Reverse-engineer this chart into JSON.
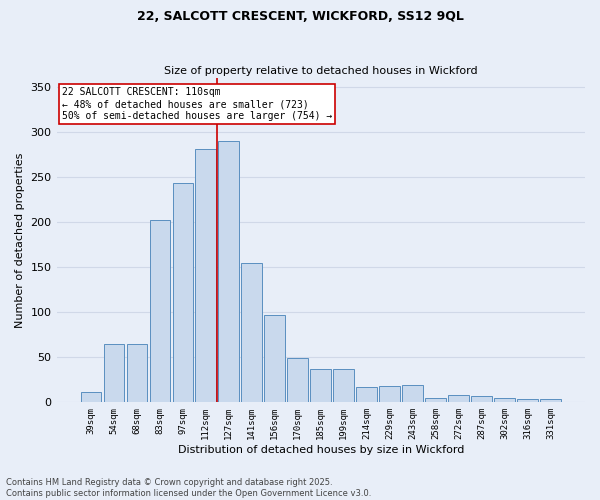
{
  "title1": "22, SALCOTT CRESCENT, WICKFORD, SS12 9QL",
  "title2": "Size of property relative to detached houses in Wickford",
  "xlabel": "Distribution of detached houses by size in Wickford",
  "ylabel": "Number of detached properties",
  "categories": [
    "39sqm",
    "54sqm",
    "68sqm",
    "83sqm",
    "97sqm",
    "112sqm",
    "127sqm",
    "141sqm",
    "156sqm",
    "170sqm",
    "185sqm",
    "199sqm",
    "214sqm",
    "229sqm",
    "243sqm",
    "258sqm",
    "272sqm",
    "287sqm",
    "302sqm",
    "316sqm",
    "331sqm"
  ],
  "values": [
    12,
    65,
    65,
    202,
    243,
    281,
    290,
    155,
    97,
    49,
    37,
    37,
    17,
    18,
    19,
    5,
    8,
    7,
    5,
    4,
    4
  ],
  "bar_color": "#c9d9ed",
  "bar_edge_color": "#5a8fc0",
  "grid_color": "#d0d8e8",
  "bg_color": "#e8eef8",
  "annotation_line1": "22 SALCOTT CRESCENT: 110sqm",
  "annotation_line2": "← 48% of detached houses are smaller (723)",
  "annotation_line3": "50% of semi-detached houses are larger (754) →",
  "annotation_box_color": "#ffffff",
  "annotation_box_edge": "#cc0000",
  "vline_color": "#cc0000",
  "vline_x_index": 5,
  "footnote": "Contains HM Land Registry data © Crown copyright and database right 2025.\nContains public sector information licensed under the Open Government Licence v3.0.",
  "ylim": [
    0,
    360
  ],
  "yticks": [
    0,
    50,
    100,
    150,
    200,
    250,
    300,
    350
  ],
  "title1_fontsize": 9,
  "title2_fontsize": 8,
  "xlabel_fontsize": 8,
  "ylabel_fontsize": 8,
  "xtick_fontsize": 6.5,
  "ytick_fontsize": 8,
  "annot_fontsize": 7,
  "footnote_fontsize": 6
}
